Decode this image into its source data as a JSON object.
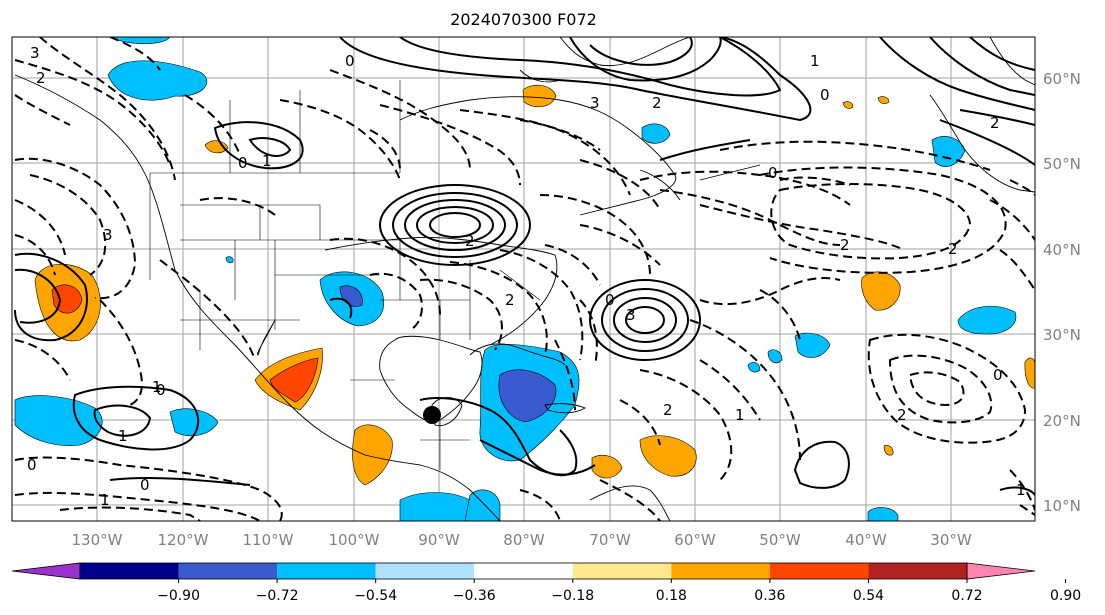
{
  "title": "2024070300 F072",
  "map": {
    "projection": "equirectangular",
    "lon_labels": [
      "130°W",
      "120°W",
      "110°W",
      "100°W",
      "90°W",
      "80°W",
      "70°W",
      "60°W",
      "50°W",
      "40°W",
      "30°W"
    ],
    "lat_labels": [
      "60°N",
      "50°N",
      "40°N",
      "30°N",
      "20°N",
      "10°N"
    ],
    "gridlines": true,
    "contour_labels": [
      {
        "id": "c1",
        "text": "3"
      },
      {
        "id": "c2",
        "text": "2"
      },
      {
        "id": "c3",
        "text": "0"
      },
      {
        "id": "c4",
        "text": "3"
      },
      {
        "id": "c5",
        "text": "2"
      },
      {
        "id": "c6",
        "text": "0"
      },
      {
        "id": "c7",
        "text": "1"
      },
      {
        "id": "c8",
        "text": "2"
      },
      {
        "id": "c9",
        "text": "0"
      },
      {
        "id": "c10",
        "text": "2"
      },
      {
        "id": "c11",
        "text": "2"
      },
      {
        "id": "c12",
        "text": "1"
      },
      {
        "id": "c13",
        "text": "0"
      },
      {
        "id": "c14",
        "text": "3"
      },
      {
        "id": "c15",
        "text": "2"
      },
      {
        "id": "c16",
        "text": "3"
      },
      {
        "id": "c17",
        "text": "0"
      },
      {
        "id": "c18",
        "text": "1"
      },
      {
        "id": "c19",
        "text": "0"
      },
      {
        "id": "c20",
        "text": "2"
      },
      {
        "id": "c21",
        "text": "1"
      },
      {
        "id": "c22",
        "text": "0"
      },
      {
        "id": "c23",
        "text": "2"
      },
      {
        "id": "c24",
        "text": "1"
      },
      {
        "id": "c25",
        "text": "0"
      },
      {
        "id": "c26",
        "text": "1"
      },
      {
        "id": "c27",
        "text": "0"
      },
      {
        "id": "c28",
        "text": "2"
      },
      {
        "id": "c29",
        "text": "1"
      }
    ],
    "marker": {
      "type": "storm-center",
      "color": "#000000"
    }
  },
  "colorbar": {
    "ticks": [
      "−0.90",
      "−0.72",
      "−0.54",
      "−0.36",
      "−0.18",
      "0.18",
      "0.36",
      "0.54",
      "0.72",
      "0.90"
    ],
    "colors": [
      "#9932cc",
      "#00008b",
      "#3a5bd0",
      "#00bfff",
      "#b0e2ff",
      "#ffffff",
      "#ffe98f",
      "#ffa500",
      "#ff4500",
      "#b22222",
      "#ff84b0"
    ],
    "extend": "both"
  }
}
